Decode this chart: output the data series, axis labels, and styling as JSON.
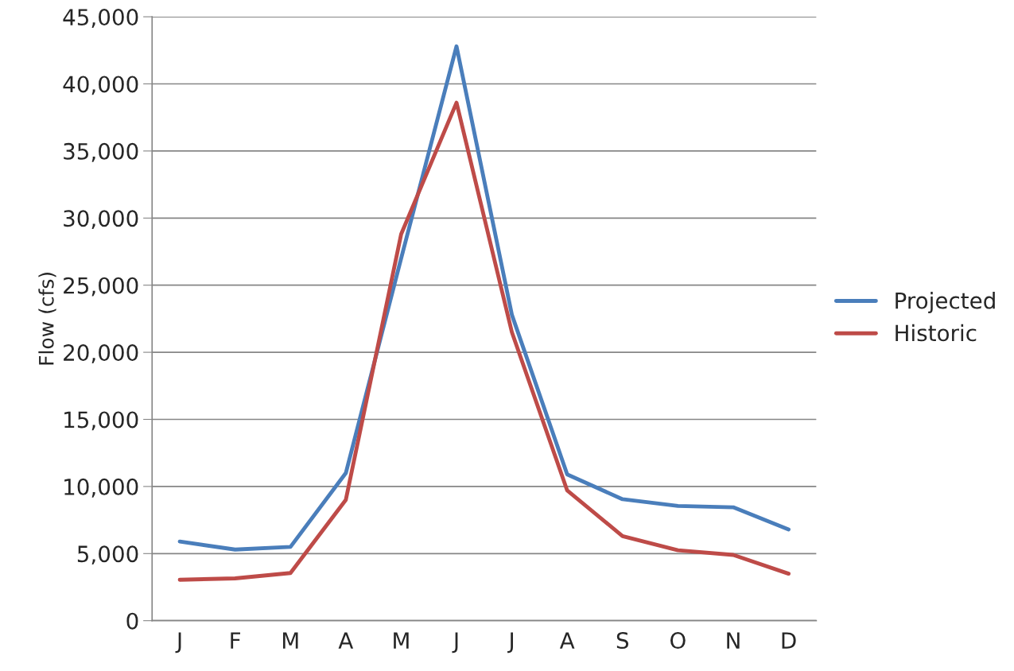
{
  "chart_data": {
    "type": "line",
    "ylabel": "Flow (cfs)",
    "categories": [
      "J",
      "F",
      "M",
      "A",
      "M",
      "J",
      "J",
      "A",
      "S",
      "O",
      "N",
      "D"
    ],
    "series": [
      {
        "name": "Projected",
        "color": "#4a7ebb",
        "values": [
          5900,
          5300,
          5500,
          11000,
          27000,
          42800,
          22800,
          10900,
          9050,
          8550,
          8450,
          6800
        ]
      },
      {
        "name": "Historic",
        "color": "#be4b48",
        "values": [
          3050,
          3150,
          3550,
          9000,
          28800,
          38600,
          21500,
          9700,
          6300,
          5250,
          4900,
          3500
        ]
      }
    ],
    "ylim": [
      0,
      45000
    ],
    "yticks": [
      0,
      {
        "value": 5000,
        "label": "5,000"
      },
      {
        "value": 10000,
        "label": "10,000"
      },
      {
        "value": 15000,
        "label": "15,000"
      },
      {
        "value": 20000,
        "label": "20,000"
      },
      {
        "value": 25000,
        "label": "25,000"
      },
      {
        "value": 30000,
        "label": "30,000"
      },
      {
        "value": 35000,
        "label": "35,000"
      },
      {
        "value": 40000,
        "label": "40,000"
      },
      {
        "value": 45000,
        "label": "45,000"
      }
    ],
    "grid": "y",
    "legend": "right",
    "marker": "none",
    "line_style": "solid"
  }
}
